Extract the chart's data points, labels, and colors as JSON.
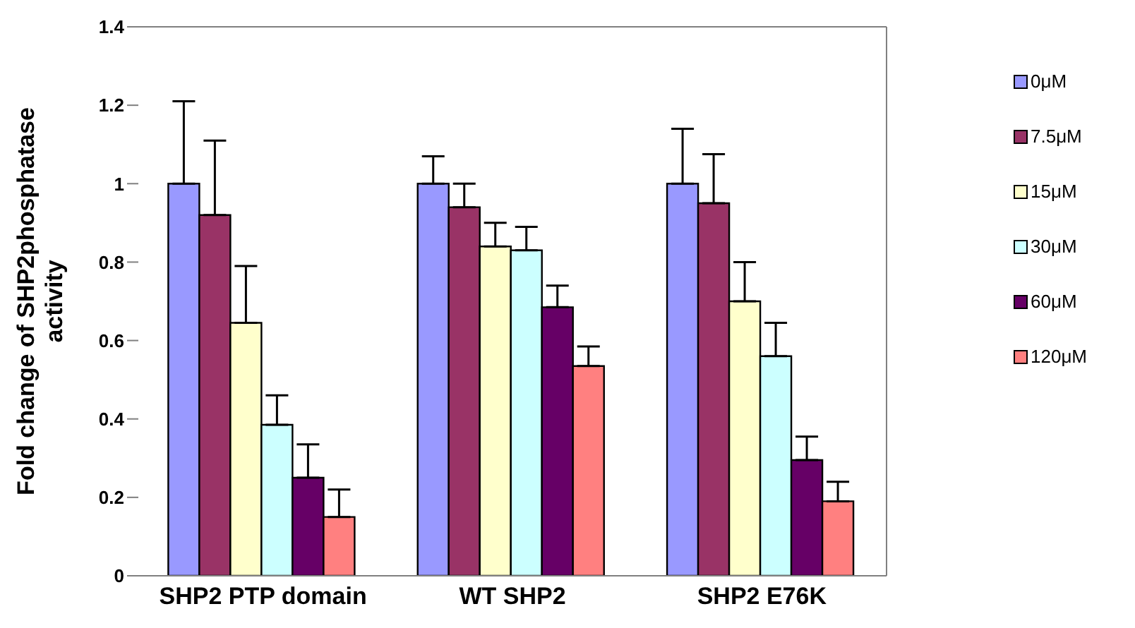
{
  "chart_data": {
    "type": "bar",
    "ylabel": "Fold change of SHP2phosphatase activity",
    "categories": [
      "SHP2 PTP domain",
      "WT SHP2",
      "SHP2 E76K"
    ],
    "series": [
      {
        "name": "0μM",
        "color": "#9999ff",
        "values": [
          1.0,
          1.0,
          1.0
        ],
        "errors": [
          [
            1.0,
            1.21
          ],
          [
            1.0,
            1.07
          ],
          [
            1.0,
            1.14
          ]
        ]
      },
      {
        "name": "7.5μM",
        "color": "#993366",
        "values": [
          0.92,
          0.94,
          0.95
        ],
        "errors": [
          [
            0.92,
            1.11
          ],
          [
            0.94,
            1.0
          ],
          [
            0.95,
            1.075
          ]
        ]
      },
      {
        "name": "15μM",
        "color": "#ffffcc",
        "values": [
          0.645,
          0.84,
          0.7
        ],
        "errors": [
          [
            0.645,
            0.79
          ],
          [
            0.84,
            0.9
          ],
          [
            0.7,
            0.8
          ]
        ]
      },
      {
        "name": "30μM",
        "color": "#ccffff",
        "values": [
          0.385,
          0.83,
          0.56
        ],
        "errors": [
          [
            0.385,
            0.46
          ],
          [
            0.83,
            0.89
          ],
          [
            0.56,
            0.645
          ]
        ]
      },
      {
        "name": "60μM",
        "color": "#660066",
        "values": [
          0.25,
          0.685,
          0.295
        ],
        "errors": [
          [
            0.25,
            0.335
          ],
          [
            0.685,
            0.74
          ],
          [
            0.295,
            0.355
          ]
        ]
      },
      {
        "name": "120μM",
        "color": "#ff8080",
        "values": [
          0.15,
          0.535,
          0.19
        ],
        "errors": [
          [
            0.15,
            0.22
          ],
          [
            0.535,
            0.585
          ],
          [
            0.19,
            0.24
          ]
        ]
      }
    ],
    "ylim": [
      0,
      1.4
    ],
    "yticks": [
      0,
      0.2,
      0.4,
      0.6,
      0.8,
      1,
      1.2,
      1.4
    ],
    "grid": false,
    "legend": "top right"
  }
}
